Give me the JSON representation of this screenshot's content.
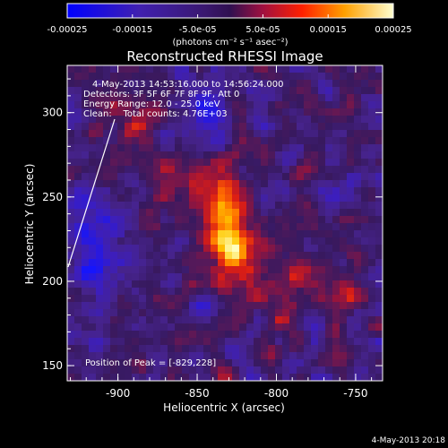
{
  "colorbar": {
    "ticks": [
      "-0.00025",
      "-0.00015",
      "-5.0e-05",
      "5.0e-05",
      "0.00015",
      "0.00025"
    ],
    "tick_values": [
      -0.00025,
      -0.00015,
      -5e-05,
      5e-05,
      0.00015,
      0.00025
    ],
    "range": [
      -0.00025,
      0.00025
    ],
    "units_label": "(photons cm⁻² s⁻¹ asec⁻²)"
  },
  "image": {
    "title": "Reconstructed RHESSI Image",
    "xlabel": "Heliocentric X (arcsec)",
    "ylabel": "Heliocentric Y (arcsec)",
    "x_ticks": [
      "-900",
      "-850",
      "-800",
      "-750"
    ],
    "x_tick_values": [
      -900,
      -850,
      -800,
      -750
    ],
    "y_ticks": [
      "150",
      "200",
      "250",
      "300"
    ],
    "y_tick_values": [
      150,
      200,
      250,
      300
    ],
    "xlim": [
      -932,
      -733
    ],
    "ylim": [
      141,
      328
    ],
    "info_lines": [
      "4-May-2013 14:53:16.000 to 14:56:24.000",
      "Detectors: 3F 5F 6F 7F 8F 9F, Att 0",
      "Energy Range: 12.0 - 25.0 keV",
      "Clean:    Total counts: 4.76E+03"
    ],
    "peak_label": "Position of Peak = [-829,228]",
    "peak_position": [
      -829,
      228
    ],
    "limb_color": "#ffffff"
  },
  "footer": {
    "timestamp": "4-May-2013 20:18"
  },
  "colors": {
    "colormap": [
      "#1a1aff",
      "#3a1aa0",
      "#3c1f6e",
      "#5a1a70",
      "#8c1a55",
      "#d02020",
      "#ff6a00",
      "#ffd000",
      "#ffffc8"
    ]
  }
}
